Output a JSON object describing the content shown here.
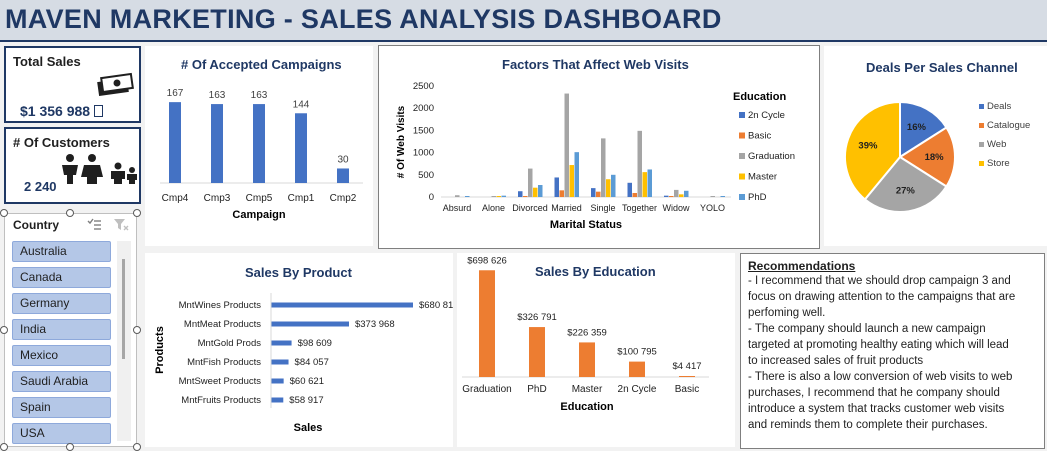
{
  "header": {
    "title": "MAVEN MARKETING -  SALES ANALYSIS DASHBOARD"
  },
  "kpis": {
    "total_sales": {
      "label": "Total Sales",
      "value": "$1 356 988",
      "icon": "money-icon"
    },
    "customers": {
      "label": "# Of Customers",
      "value": "2 240",
      "icon": "family-icon"
    }
  },
  "slicer": {
    "title": "Country",
    "items": [
      "Australia",
      "Canada",
      "Germany",
      "India",
      "Mexico",
      "Saudi Arabia",
      "Spain",
      "USA"
    ]
  },
  "colors": {
    "blue": "#4472c4",
    "orange": "#ed7d31",
    "gray": "#a5a5a5",
    "yellow": "#ffc000",
    "light_blue": "#5b9bd5",
    "navy": "#1f3864"
  },
  "chart_data": [
    {
      "id": "accepted-campaigns",
      "type": "bar",
      "title": "# Of Accepted Campaigns",
      "xlabel": "Campaign",
      "categories": [
        "Cmp4",
        "Cmp3",
        "Cmp5",
        "Cmp1",
        "Cmp2"
      ],
      "values": [
        167,
        163,
        163,
        144,
        30
      ],
      "data_labels": [
        "167",
        "163",
        "163",
        "144",
        "30"
      ],
      "ylim": [
        0,
        190
      ]
    },
    {
      "id": "web-visits",
      "type": "bar",
      "title": "Factors That Affect Web Visits",
      "xlabel": "Marital Status",
      "ylabel": "# Of Web Visits",
      "ylim": [
        0,
        2500
      ],
      "yticks": [
        "0",
        "500",
        "1000",
        "1500",
        "2000",
        "2500"
      ],
      "categories": [
        "Absurd",
        "Alone",
        "Divorced",
        "Married",
        "Single",
        "Together",
        "Widow",
        "YOLO"
      ],
      "legend_title": "Education",
      "legend_position": "right",
      "series": [
        {
          "name": "2n Cycle",
          "values": [
            0,
            0,
            130,
            440,
            200,
            320,
            30,
            0
          ]
        },
        {
          "name": "Basic",
          "values": [
            0,
            0,
            20,
            150,
            120,
            90,
            10,
            0
          ]
        },
        {
          "name": "Graduation",
          "values": [
            40,
            20,
            640,
            2330,
            1320,
            1490,
            160,
            20
          ]
        },
        {
          "name": "Master",
          "values": [
            0,
            10,
            210,
            720,
            400,
            560,
            60,
            0
          ]
        },
        {
          "name": "PhD",
          "values": [
            20,
            30,
            270,
            1010,
            500,
            620,
            140,
            20
          ]
        }
      ]
    },
    {
      "id": "sales-channel",
      "type": "pie",
      "title": "Deals Per Sales Channel",
      "legend_position": "right",
      "slices": [
        {
          "name": "Deals",
          "value": 16,
          "label": "16%"
        },
        {
          "name": "Catalogue",
          "value": 18,
          "label": "18%"
        },
        {
          "name": "Web",
          "value": 27,
          "label": "27%"
        },
        {
          "name": "Store",
          "value": 39,
          "label": "39%"
        }
      ]
    },
    {
      "id": "sales-product",
      "type": "bar",
      "orientation": "horizontal",
      "title": "Sales By Product",
      "xlabel": "Sales",
      "ylabel": "Products",
      "categories": [
        "MntWines Products",
        "MntMeat Products",
        "MntGold Prods",
        "MntFish Products",
        "MntSweet Products",
        "MntFruits Products"
      ],
      "values": [
        680816,
        373968,
        98609,
        84057,
        60621,
        58917
      ],
      "data_labels": [
        "$680 816",
        "$373 968",
        "$98 609",
        "$84 057",
        "$60 621",
        "$58 917"
      ],
      "xlim": [
        0,
        700000
      ]
    },
    {
      "id": "sales-education",
      "type": "bar",
      "title": "Sales By Education",
      "xlabel": "Education",
      "categories": [
        "Graduation",
        "PhD",
        "Master",
        "2n Cycle",
        "Basic"
      ],
      "values": [
        698626,
        326791,
        226359,
        100795,
        4417
      ],
      "data_labels": [
        "$698 626",
        "$326 791",
        "$226 359",
        "$100 795",
        "$4 417"
      ],
      "ylim": [
        0,
        720000
      ]
    }
  ],
  "recommendations": {
    "heading": "Recommendations",
    "lines": [
      "- I recommend that we should drop campaign 3 and",
      "focus on drawing attention to the campaigns that are",
      "perfoming well.",
      "- The company should launch a new campaign",
      "targeted at promoting healthy eating which will lead",
      "to increased sales of fruit products",
      "- There is also a low conversion of web visits to web",
      "purchases, I recommend that he company should",
      "introduce a system that tracks customer web visits",
      "and reminds them to complete their purchases."
    ]
  }
}
